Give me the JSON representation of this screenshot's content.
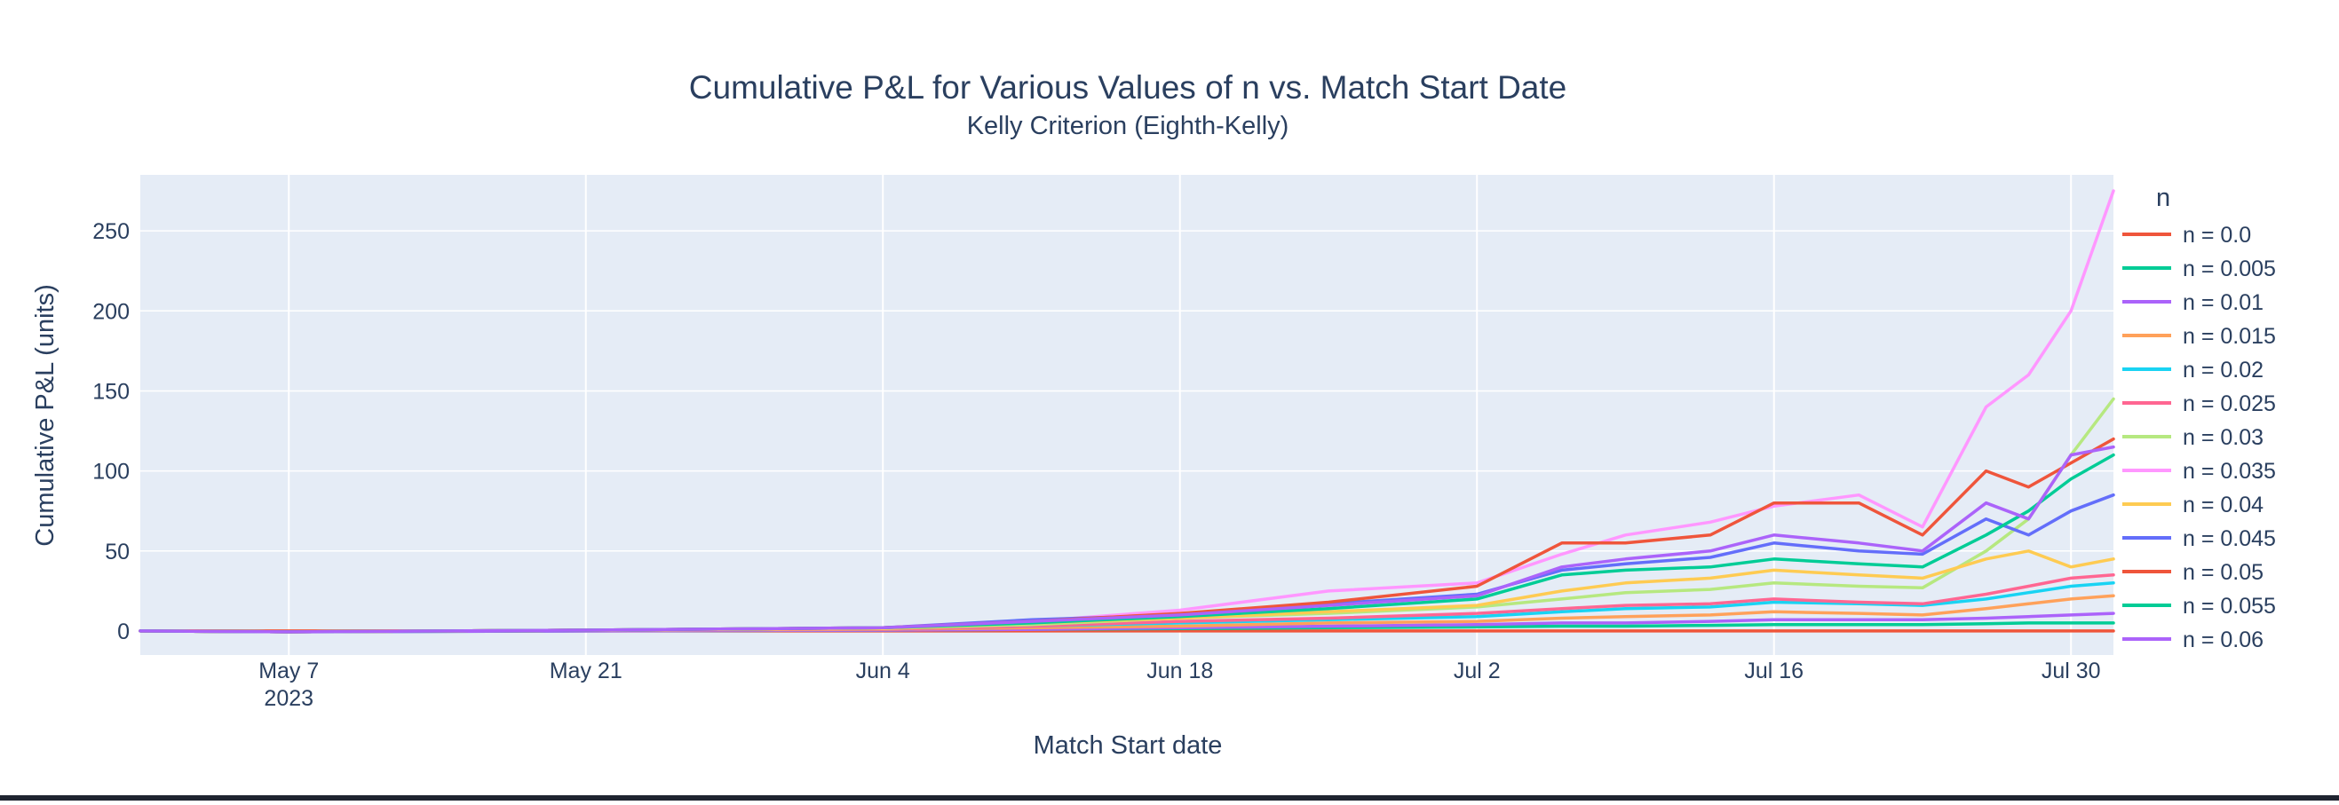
{
  "chart_data": {
    "type": "line",
    "title": "Cumulative P&L for Various Values of n vs. Match Start Date",
    "subtitle": "Kelly Criterion (Eighth-Kelly)",
    "xlabel": "Match Start date",
    "ylabel": "Cumulative P&L (units)",
    "x_range": [
      "2023-04-30",
      "2023-08-01"
    ],
    "ylim": [
      -15,
      285
    ],
    "x_ticks": [
      {
        "date": "2023-05-07",
        "label": "May 7",
        "sublabel": "2023"
      },
      {
        "date": "2023-05-21",
        "label": "May 21"
      },
      {
        "date": "2023-06-04",
        "label": "Jun 4"
      },
      {
        "date": "2023-06-18",
        "label": "Jun 18"
      },
      {
        "date": "2023-07-02",
        "label": "Jul 2"
      },
      {
        "date": "2023-07-16",
        "label": "Jul 16"
      },
      {
        "date": "2023-07-30",
        "label": "Jul 30"
      }
    ],
    "y_ticks": [
      0,
      50,
      100,
      150,
      200,
      250
    ],
    "grid": true,
    "legend_title": "n",
    "legend_position": "right",
    "colors": {
      "plot_bg": "#e5ecf6",
      "grid": "#ffffff",
      "text": "#2a3f5f"
    },
    "x": [
      "2023-04-30",
      "2023-05-07",
      "2023-05-21",
      "2023-06-04",
      "2023-06-11",
      "2023-06-18",
      "2023-06-25",
      "2023-07-02",
      "2023-07-06",
      "2023-07-09",
      "2023-07-13",
      "2023-07-16",
      "2023-07-20",
      "2023-07-23",
      "2023-07-26",
      "2023-07-28",
      "2023-07-30",
      "2023-08-01"
    ],
    "series": [
      {
        "name": "n = 0.0",
        "color": "#EF553B",
        "values": [
          0,
          0,
          0,
          0,
          0,
          0,
          0,
          0,
          0,
          0,
          0,
          0,
          0,
          0,
          0,
          0,
          0,
          0
        ]
      },
      {
        "name": "n = 0.005",
        "color": "#00CC96",
        "values": [
          0,
          -0.5,
          0,
          0.5,
          1,
          1.5,
          2,
          2.5,
          3,
          3,
          3.5,
          4,
          4,
          4,
          4.5,
          5,
          5,
          5
        ]
      },
      {
        "name": "n = 0.01",
        "color": "#AB63FA",
        "values": [
          0,
          -0.5,
          0,
          0.5,
          1,
          2,
          3,
          4,
          5,
          5,
          6,
          7,
          7,
          7,
          8,
          9,
          10,
          11
        ]
      },
      {
        "name": "n = 0.015",
        "color": "#FFA15A",
        "values": [
          0,
          -0.5,
          0.5,
          1,
          2,
          3,
          5,
          6,
          8,
          9,
          10,
          12,
          11,
          10,
          14,
          17,
          20,
          22
        ]
      },
      {
        "name": "n = 0.02",
        "color": "#19D3F3",
        "values": [
          0,
          -0.5,
          0.5,
          1,
          3,
          5,
          7,
          9,
          12,
          14,
          15,
          18,
          17,
          16,
          20,
          24,
          28,
          30
        ]
      },
      {
        "name": "n = 0.025",
        "color": "#FF6692",
        "values": [
          0,
          -0.5,
          0.5,
          1,
          3,
          6,
          8,
          11,
          14,
          16,
          17,
          20,
          18,
          17,
          23,
          28,
          33,
          35
        ]
      },
      {
        "name": "n = 0.03",
        "color": "#B6E880",
        "values": [
          0,
          -0.5,
          0.5,
          1.5,
          4,
          8,
          11,
          15,
          20,
          24,
          26,
          30,
          28,
          27,
          50,
          70,
          110,
          145
        ]
      },
      {
        "name": "n = 0.035",
        "color": "#FF97FF",
        "values": [
          0,
          -0.5,
          0.5,
          2,
          6,
          13,
          25,
          30,
          48,
          60,
          68,
          78,
          85,
          65,
          140,
          160,
          200,
          275
        ]
      },
      {
        "name": "n = 0.04",
        "color": "#FECB52",
        "values": [
          0,
          -0.5,
          0.5,
          1.5,
          5,
          8,
          12,
          16,
          25,
          30,
          33,
          38,
          35,
          33,
          45,
          50,
          40,
          45
        ]
      },
      {
        "name": "n = 0.045",
        "color": "#636EFA",
        "values": [
          0,
          -0.5,
          0.5,
          2,
          7,
          10,
          17,
          23,
          38,
          42,
          46,
          55,
          50,
          48,
          70,
          60,
          75,
          85
        ]
      },
      {
        "name": "n = 0.05",
        "color": "#EF553B",
        "values": [
          0,
          -0.5,
          0.5,
          2,
          6,
          11,
          18,
          28,
          55,
          55,
          60,
          80,
          80,
          60,
          100,
          90,
          105,
          120
        ]
      },
      {
        "name": "n = 0.055",
        "color": "#00CC96",
        "values": [
          0,
          -0.5,
          0.5,
          2,
          5,
          9,
          14,
          20,
          35,
          38,
          40,
          45,
          42,
          40,
          60,
          75,
          95,
          110
        ]
      },
      {
        "name": "n = 0.06",
        "color": "#AB63FA",
        "values": [
          0,
          -0.5,
          0.5,
          2,
          6,
          10,
          16,
          22,
          40,
          45,
          50,
          60,
          55,
          50,
          80,
          70,
          110,
          115
        ]
      }
    ]
  }
}
